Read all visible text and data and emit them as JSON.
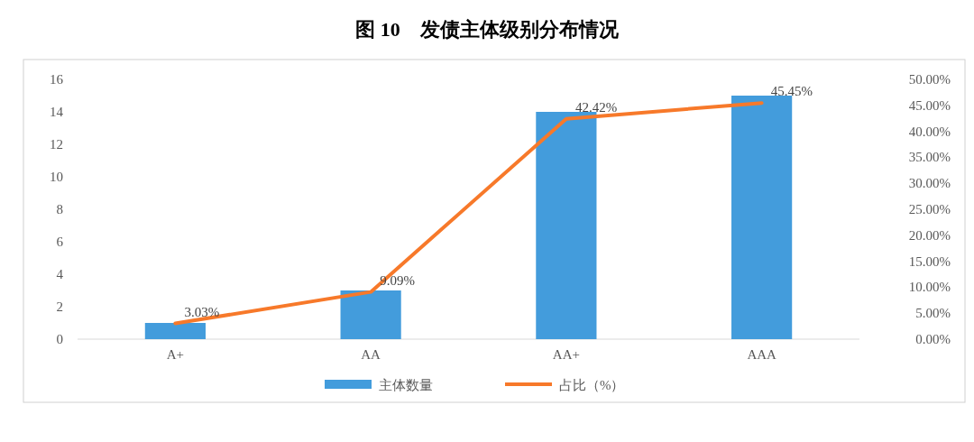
{
  "chart_data": {
    "type": "bar",
    "title": "图 10　发债主体级别分布情况",
    "categories": [
      "A+",
      "AA",
      "AA+",
      "AAA"
    ],
    "series": [
      {
        "name": "主体数量",
        "color": "#439cdc",
        "values": [
          1,
          3,
          14,
          15
        ]
      },
      {
        "name": "占比（%）",
        "type": "line",
        "axis": "y2",
        "color": "#f7792a",
        "values": [
          3.03,
          9.09,
          42.42,
          45.45
        ],
        "value_labels": [
          "3.03%",
          "9.09%",
          "42.42%",
          "45.45%"
        ]
      }
    ],
    "ylim": [
      0,
      16
    ],
    "yticks": [
      0,
      2,
      4,
      6,
      8,
      10,
      12,
      14,
      16
    ],
    "y2lim": [
      0,
      50
    ],
    "y2ticks": [
      {
        "value": 0,
        "label": "0.00%"
      },
      {
        "value": 5,
        "label": "5.00%"
      },
      {
        "value": 10,
        "label": "10.00%"
      },
      {
        "value": 15,
        "label": "15.00%"
      },
      {
        "value": 20,
        "label": "20.00%"
      },
      {
        "value": 25,
        "label": "25.00%"
      },
      {
        "value": 30,
        "label": "30.00%"
      },
      {
        "value": 35,
        "label": "35.00%"
      },
      {
        "value": 40,
        "label": "40.00%"
      },
      {
        "value": 45,
        "label": "45.00%"
      },
      {
        "value": 50,
        "label": "50.00%"
      }
    ],
    "grid": false,
    "legend": "bottom",
    "marker": "none"
  }
}
